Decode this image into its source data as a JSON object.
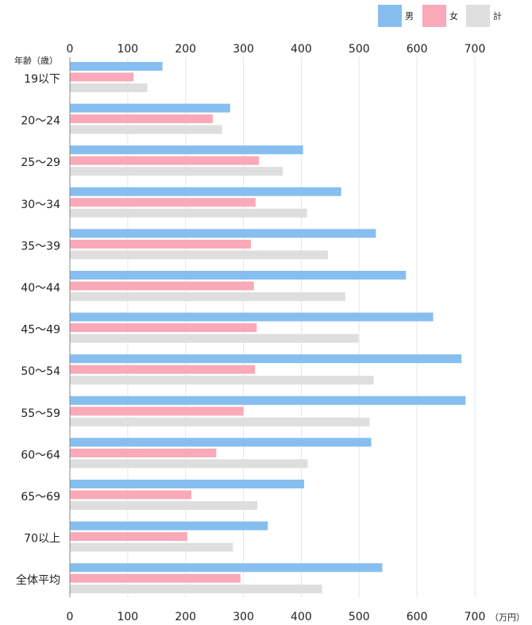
{
  "chart_data": {
    "type": "bar",
    "orientation": "horizontal",
    "y_axis_title": "年齢（歳）",
    "unit": "（万円）",
    "categories": [
      "19以下",
      "20〜24",
      "25〜29",
      "30〜34",
      "35〜39",
      "40〜44",
      "45〜49",
      "50〜54",
      "55〜59",
      "60〜64",
      "65〜69",
      "70以上",
      "全体平均"
    ],
    "series": [
      {
        "name": "男",
        "color": "#86bfef",
        "values": [
          160,
          277,
          403,
          469,
          529,
          581,
          628,
          677,
          684,
          521,
          405,
          342,
          540
        ]
      },
      {
        "name": "女",
        "color": "#f9a9b8",
        "values": [
          110,
          247,
          327,
          321,
          313,
          318,
          323,
          320,
          300,
          253,
          210,
          203,
          295
        ]
      },
      {
        "name": "計",
        "color": "#dedede",
        "values": [
          134,
          263,
          368,
          410,
          446,
          476,
          499,
          525,
          518,
          411,
          324,
          282,
          436
        ]
      }
    ],
    "xlim": [
      0,
      700
    ],
    "xticks": [
      0,
      100,
      200,
      300,
      400,
      500,
      600,
      700
    ],
    "xtick_labels": [
      "0",
      "100",
      "200",
      "300",
      "400",
      "500",
      "600",
      "700"
    ],
    "grid": true,
    "legend_position": "top-right"
  }
}
